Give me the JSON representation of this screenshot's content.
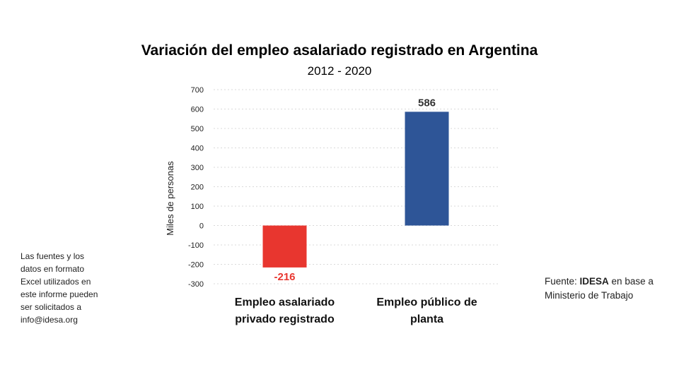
{
  "chart_data": {
    "type": "bar",
    "title": "Variación del empleo asalariado registrado en Argentina",
    "subtitle": "2012 - 2020",
    "ylabel": "Miles de personas",
    "xlabel": "",
    "ylim": [
      -300,
      700
    ],
    "yticks": [
      700,
      600,
      500,
      400,
      300,
      200,
      100,
      0,
      -100,
      -200,
      -300
    ],
    "grid": true,
    "categories": [
      "Empleo asalariado privado registrado",
      "Empleo público de planta"
    ],
    "category_lines": [
      [
        "Empleo asalariado",
        "privado registrado"
      ],
      [
        "Empleo público de",
        "planta"
      ]
    ],
    "values": [
      -216,
      586
    ],
    "data_labels": [
      "-216",
      "586"
    ],
    "bar_colors": [
      "#e8362f",
      "#2e5597"
    ],
    "label_colors": [
      "#e8362f",
      "#333333"
    ],
    "negative_tick_color": "#e8362f"
  },
  "note": "Las fuentes y los\ndatos en formato\nExcel utilizados en\neste informe pueden\nser solicitados a\ninfo@idesa.org",
  "source": {
    "prefix": "Fuente: ",
    "org": "IDESA",
    "suffix": " en base a Ministerio de Trabajo"
  }
}
